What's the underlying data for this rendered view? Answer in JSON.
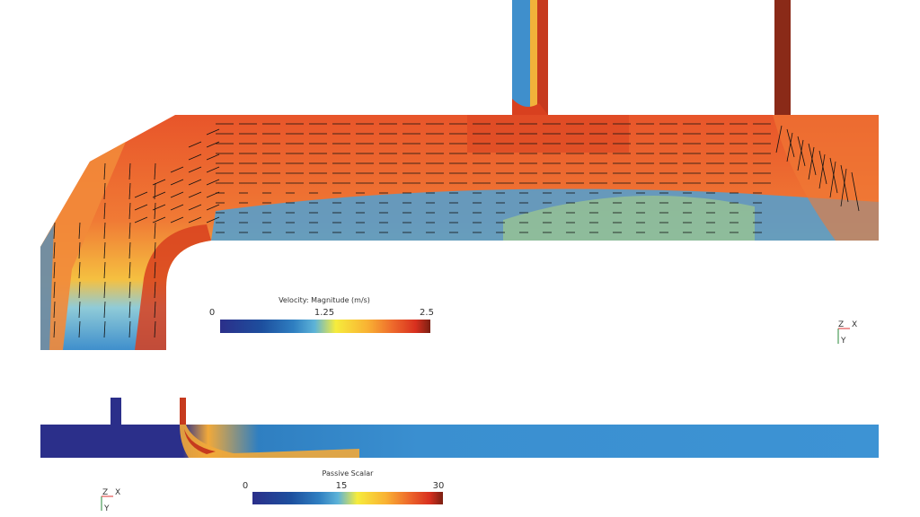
{
  "velocity_legend": {
    "title": "Velocity: Magnitude (m/s)",
    "min": "0",
    "mid": "1.25",
    "max": "2.5"
  },
  "scalar_legend": {
    "title": "Passive Scalar",
    "min": "0",
    "mid": "15",
    "max": "30"
  },
  "axes_top": {
    "z": "Z",
    "x": "X",
    "y": "Y"
  },
  "axes_bottom": {
    "z": "Z",
    "x": "X",
    "y": "Y"
  },
  "colormap": [
    "#2b2f8a",
    "#1d4f9e",
    "#2f7fc1",
    "#5db3d8",
    "#f6ec3c",
    "#f9b233",
    "#ee6a2c",
    "#d8301f",
    "#7a1f12"
  ]
}
